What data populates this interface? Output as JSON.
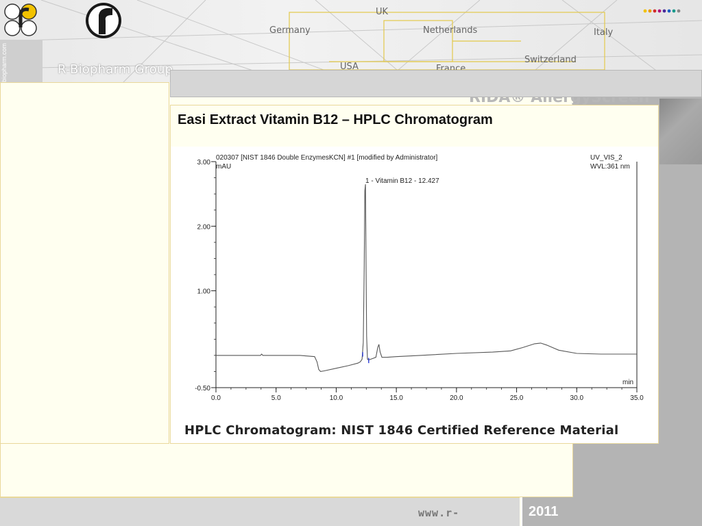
{
  "header": {
    "brand": "R-Biopharm Group",
    "vertical_url": "biopharm.com",
    "countries": [
      "UK",
      "Germany",
      "Netherlands",
      "Italy",
      "Switzerland",
      "USA",
      "France"
    ],
    "ghost_subtitle": "RIDA® AllergyScreen"
  },
  "slide": {
    "title": "Easi Extract Vitamin B12 – HPLC Chromatogram",
    "caption": "HPLC Chromatogram: NIST 1846 Certified Reference Material"
  },
  "footer": {
    "url": "www.r-",
    "year": "2011"
  },
  "colors": {
    "accent_yellow": "#f2c200",
    "frame_border": "#e9d89a",
    "gray_panel": "#b4b4b4",
    "trace": "#555555",
    "peak_marker": "#2b3bd6"
  },
  "chart_data": {
    "type": "line",
    "title": "020307 [NIST 1846 Double EnzymesKCN] #1 [modified by Administrator]",
    "channel": "UV_VIS_2",
    "wavelength": "WVL:361 nm",
    "xlabel": "min",
    "ylabel": "mAU",
    "xlim": [
      0.0,
      35.0
    ],
    "ylim": [
      -0.5,
      3.0
    ],
    "x_ticks": [
      "0.0",
      "5.0",
      "10.0",
      "15.0",
      "20.0",
      "25.0",
      "30.0",
      "35.0"
    ],
    "y_ticks": [
      {
        "value": 3.0,
        "label": "3.00"
      },
      {
        "value": 2.0,
        "label": "2.00"
      },
      {
        "value": 1.0,
        "label": "1.00"
      },
      {
        "value": -0.5,
        "label": "-0.50"
      }
    ],
    "peak_annotation": {
      "label": "1 - Vitamin B12 - 12.427",
      "x": 12.427,
      "y": 2.65
    },
    "series": [
      {
        "x": [
          0.0,
          2.0,
          3.7,
          3.8,
          3.9,
          5.0,
          7.0,
          8.2,
          8.4,
          8.55,
          8.7,
          9.0,
          10.0,
          11.0,
          11.8,
          12.0,
          12.15,
          12.25,
          12.33,
          12.38,
          12.43,
          12.48,
          12.53,
          12.6,
          12.7,
          13.0,
          13.3,
          13.45,
          13.55,
          13.65,
          13.8,
          14.2,
          15.0,
          17.0,
          20.0,
          23.0,
          24.5,
          25.5,
          26.5,
          27.0,
          27.5,
          28.5,
          30.0,
          32.0,
          35.0
        ],
        "y": [
          0.0,
          0.0,
          0.0,
          0.02,
          0.0,
          0.0,
          0.0,
          -0.02,
          -0.1,
          -0.22,
          -0.25,
          -0.24,
          -0.2,
          -0.16,
          -0.12,
          -0.1,
          -0.06,
          0.2,
          1.4,
          2.55,
          2.65,
          1.5,
          0.3,
          -0.06,
          -0.07,
          -0.05,
          -0.03,
          0.12,
          0.17,
          0.05,
          -0.03,
          -0.03,
          -0.02,
          0.0,
          0.03,
          0.05,
          0.07,
          0.12,
          0.18,
          0.19,
          0.16,
          0.08,
          0.03,
          0.02,
          0.02
        ]
      }
    ],
    "grid": false
  }
}
